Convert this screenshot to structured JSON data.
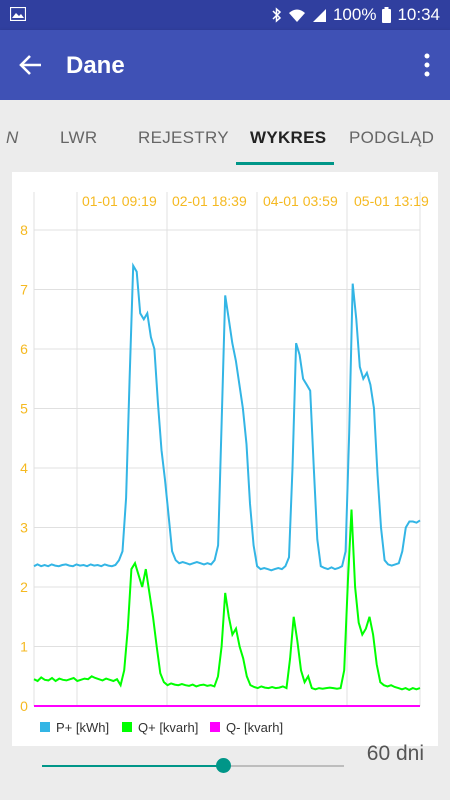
{
  "status_bar": {
    "battery": "100%",
    "time": "10:34",
    "icons": [
      "image-icon",
      "bluetooth-icon",
      "wifi-icon",
      "signal-icon",
      "battery-icon"
    ]
  },
  "app_bar": {
    "title": "Dane",
    "icons": [
      "back-arrow-icon",
      "more-vert-icon"
    ]
  },
  "tabs": [
    {
      "label": "N"
    },
    {
      "label": "LWR"
    },
    {
      "label": "REJESTRY"
    },
    {
      "label": "WYKRES",
      "active": true
    },
    {
      "label": "PODGLĄD"
    }
  ],
  "colors": {
    "status_bar": "#303f9f",
    "app_bar": "#3f51b5",
    "accent": "#009688",
    "axis_labels": "#f5b921",
    "p_plus": "#33b5e5",
    "q_plus": "#00ff00",
    "q_minus": "#ff00ff"
  },
  "chart_data": {
    "type": "line",
    "ylim": [
      0,
      8
    ],
    "yticks": [
      "0",
      "1",
      "2",
      "3",
      "4",
      "5",
      "6",
      "7",
      "8"
    ],
    "x_tick_labels": [
      "01-01 09:19",
      "02-01 18:39",
      "04-01 03:59",
      "05-01 13:19"
    ],
    "legend_position": "bottom-left",
    "grid": true,
    "series": [
      {
        "name": "P+ [kWh]",
        "color": "#33b5e5",
        "values": [
          2.35,
          2.38,
          2.35,
          2.37,
          2.35,
          2.38,
          2.36,
          2.35,
          2.37,
          2.38,
          2.36,
          2.35,
          2.38,
          2.36,
          2.37,
          2.35,
          2.38,
          2.36,
          2.37,
          2.35,
          2.38,
          2.36,
          2.35,
          2.37,
          2.45,
          2.6,
          3.5,
          5.5,
          7.4,
          7.3,
          6.6,
          6.5,
          6.6,
          6.2,
          6.0,
          5.1,
          4.3,
          3.8,
          3.2,
          2.6,
          2.45,
          2.4,
          2.42,
          2.4,
          2.38,
          2.4,
          2.42,
          2.4,
          2.38,
          2.4,
          2.38,
          2.45,
          2.7,
          4.8,
          6.9,
          6.5,
          6.1,
          5.8,
          5.4,
          5.0,
          4.4,
          3.4,
          2.7,
          2.35,
          2.3,
          2.32,
          2.3,
          2.28,
          2.3,
          2.32,
          2.3,
          2.35,
          2.5,
          4.0,
          6.1,
          5.9,
          5.5,
          5.4,
          5.3,
          4.0,
          2.8,
          2.35,
          2.32,
          2.3,
          2.33,
          2.3,
          2.32,
          2.35,
          2.6,
          4.6,
          7.1,
          6.5,
          5.7,
          5.5,
          5.6,
          5.4,
          5.0,
          3.9,
          3.0,
          2.45,
          2.38,
          2.36,
          2.38,
          2.4,
          2.6,
          3.0,
          3.1,
          3.1,
          3.08,
          3.12
        ]
      },
      {
        "name": "Q+ [kvarh]",
        "color": "#00ff00",
        "values": [
          0.45,
          0.42,
          0.48,
          0.44,
          0.43,
          0.47,
          0.42,
          0.46,
          0.44,
          0.43,
          0.45,
          0.47,
          0.42,
          0.44,
          0.46,
          0.45,
          0.5,
          0.47,
          0.45,
          0.43,
          0.46,
          0.44,
          0.42,
          0.45,
          0.35,
          0.6,
          1.3,
          2.3,
          2.4,
          2.2,
          2.0,
          2.3,
          1.9,
          1.5,
          1.0,
          0.55,
          0.4,
          0.35,
          0.38,
          0.36,
          0.35,
          0.37,
          0.35,
          0.34,
          0.36,
          0.33,
          0.35,
          0.36,
          0.34,
          0.35,
          0.33,
          0.5,
          1.0,
          1.9,
          1.5,
          1.2,
          1.3,
          1.0,
          0.8,
          0.5,
          0.35,
          0.32,
          0.3,
          0.33,
          0.31,
          0.3,
          0.32,
          0.3,
          0.31,
          0.33,
          0.3,
          0.8,
          1.5,
          1.1,
          0.6,
          0.4,
          0.5,
          0.3,
          0.28,
          0.3,
          0.29,
          0.3,
          0.31,
          0.3,
          0.29,
          0.3,
          0.6,
          2.1,
          3.3,
          2.0,
          1.4,
          1.2,
          1.3,
          1.5,
          1.2,
          0.7,
          0.4,
          0.35,
          0.33,
          0.35,
          0.32,
          0.3,
          0.28,
          0.3,
          0.27,
          0.3,
          0.28,
          0.3
        ]
      },
      {
        "name": "Q- [kvarh]",
        "color": "#ff00ff",
        "values": [
          0,
          0,
          0,
          0,
          0,
          0,
          0,
          0,
          0,
          0,
          0,
          0,
          0,
          0,
          0,
          0,
          0,
          0,
          0,
          0,
          0,
          0,
          0,
          0,
          0,
          0,
          0,
          0,
          0,
          0,
          0,
          0,
          0,
          0,
          0,
          0,
          0,
          0,
          0,
          0,
          0,
          0,
          0,
          0,
          0,
          0,
          0,
          0,
          0,
          0,
          0,
          0,
          0,
          0,
          0,
          0,
          0,
          0,
          0,
          0,
          0,
          0,
          0,
          0,
          0,
          0,
          0,
          0,
          0,
          0,
          0,
          0,
          0,
          0,
          0,
          0,
          0,
          0,
          0,
          0,
          0,
          0,
          0,
          0,
          0,
          0,
          0,
          0,
          0,
          0,
          0,
          0,
          0,
          0,
          0,
          0,
          0,
          0,
          0,
          0,
          0,
          0,
          0,
          0,
          0,
          0,
          0,
          0
        ]
      }
    ]
  },
  "slider": {
    "fraction": 0.6,
    "value_label": "60 dni"
  }
}
